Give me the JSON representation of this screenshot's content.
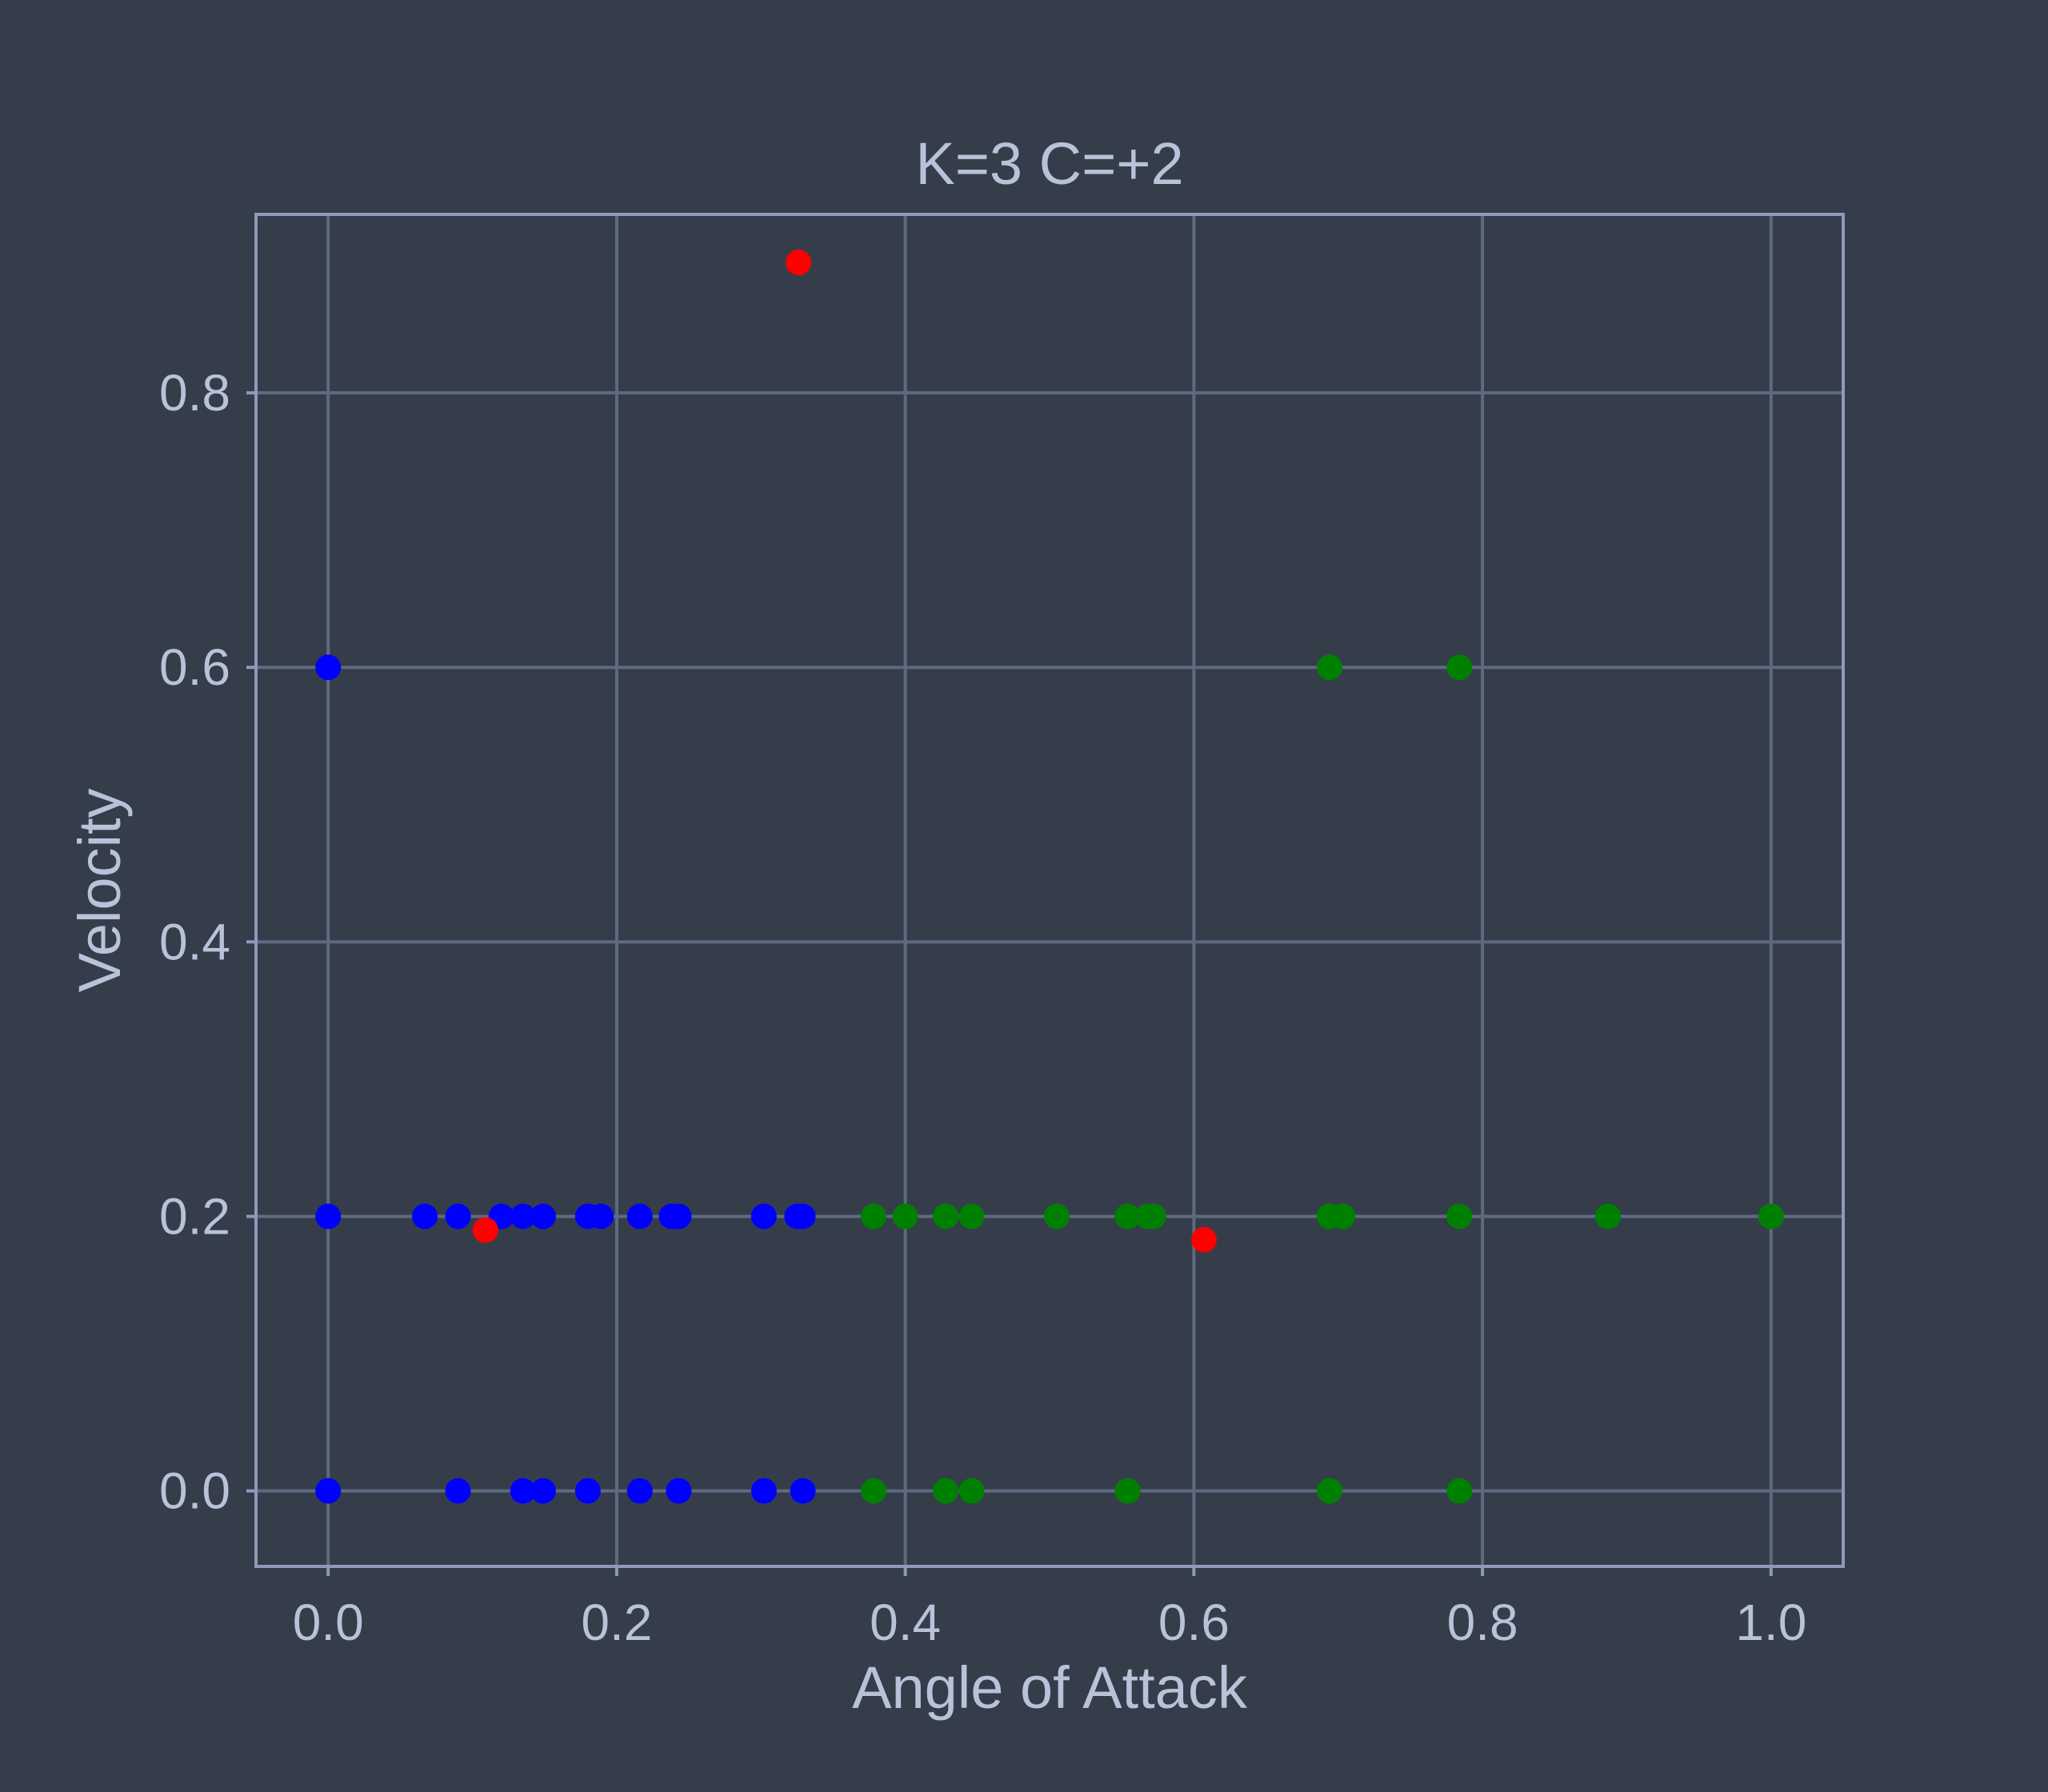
{
  "chart_data": {
    "type": "scatter",
    "title": "K=3 C=+2",
    "xlabel": "Angle of Attack",
    "ylabel": "Velocity",
    "xlim": [
      -0.05,
      1.05
    ],
    "ylim": [
      -0.055,
      0.93
    ],
    "xticks": [
      "0.0",
      "0.2",
      "0.4",
      "0.6",
      "0.8",
      "1.0"
    ],
    "yticks": [
      "0.0",
      "0.2",
      "0.4",
      "0.6",
      "0.8"
    ],
    "grid": true,
    "legend": "none",
    "colors": {
      "background": "#353d4a",
      "text": "#b8c2d8",
      "grid": "#5e6a80",
      "frame": "#8d9abb",
      "cluster_blue": "#0000ff",
      "cluster_green": "#008000",
      "centroid_red": "#ff0000"
    },
    "series": [
      {
        "color": "#0000ff",
        "points": [
          [
            0.0,
            0.6
          ],
          [
            0.0,
            0.2
          ],
          [
            0.0,
            0.0
          ],
          [
            0.067,
            0.2
          ],
          [
            0.09,
            0.2
          ],
          [
            0.09,
            0.0
          ],
          [
            0.12,
            0.2
          ],
          [
            0.135,
            0.2
          ],
          [
            0.135,
            0.0
          ],
          [
            0.149,
            0.2
          ],
          [
            0.149,
            0.0
          ],
          [
            0.18,
            0.2
          ],
          [
            0.18,
            0.0
          ],
          [
            0.189,
            0.2
          ],
          [
            0.216,
            0.2
          ],
          [
            0.216,
            0.0
          ],
          [
            0.238,
            0.2
          ],
          [
            0.243,
            0.2
          ],
          [
            0.243,
            0.0
          ],
          [
            0.302,
            0.2
          ],
          [
            0.302,
            0.0
          ],
          [
            0.325,
            0.2
          ],
          [
            0.329,
            0.2
          ],
          [
            0.329,
            0.0
          ]
        ]
      },
      {
        "color": "#008000",
        "points": [
          [
            0.378,
            0.2
          ],
          [
            0.378,
            0.0
          ],
          [
            0.4,
            0.2
          ],
          [
            0.428,
            0.2
          ],
          [
            0.428,
            0.0
          ],
          [
            0.446,
            0.2
          ],
          [
            0.446,
            0.0
          ],
          [
            0.505,
            0.2
          ],
          [
            0.554,
            0.2
          ],
          [
            0.554,
            0.0
          ],
          [
            0.568,
            0.2
          ],
          [
            0.572,
            0.2
          ],
          [
            0.694,
            0.6
          ],
          [
            0.694,
            0.2
          ],
          [
            0.694,
            0.0
          ],
          [
            0.703,
            0.2
          ],
          [
            0.784,
            0.6
          ],
          [
            0.784,
            0.2
          ],
          [
            0.784,
            0.0
          ],
          [
            0.887,
            0.2
          ],
          [
            1.0,
            0.2
          ]
        ]
      },
      {
        "color": "#ff0000",
        "points": [
          [
            0.109,
            0.19
          ],
          [
            0.326,
            0.895
          ],
          [
            0.607,
            0.183
          ]
        ]
      }
    ]
  }
}
